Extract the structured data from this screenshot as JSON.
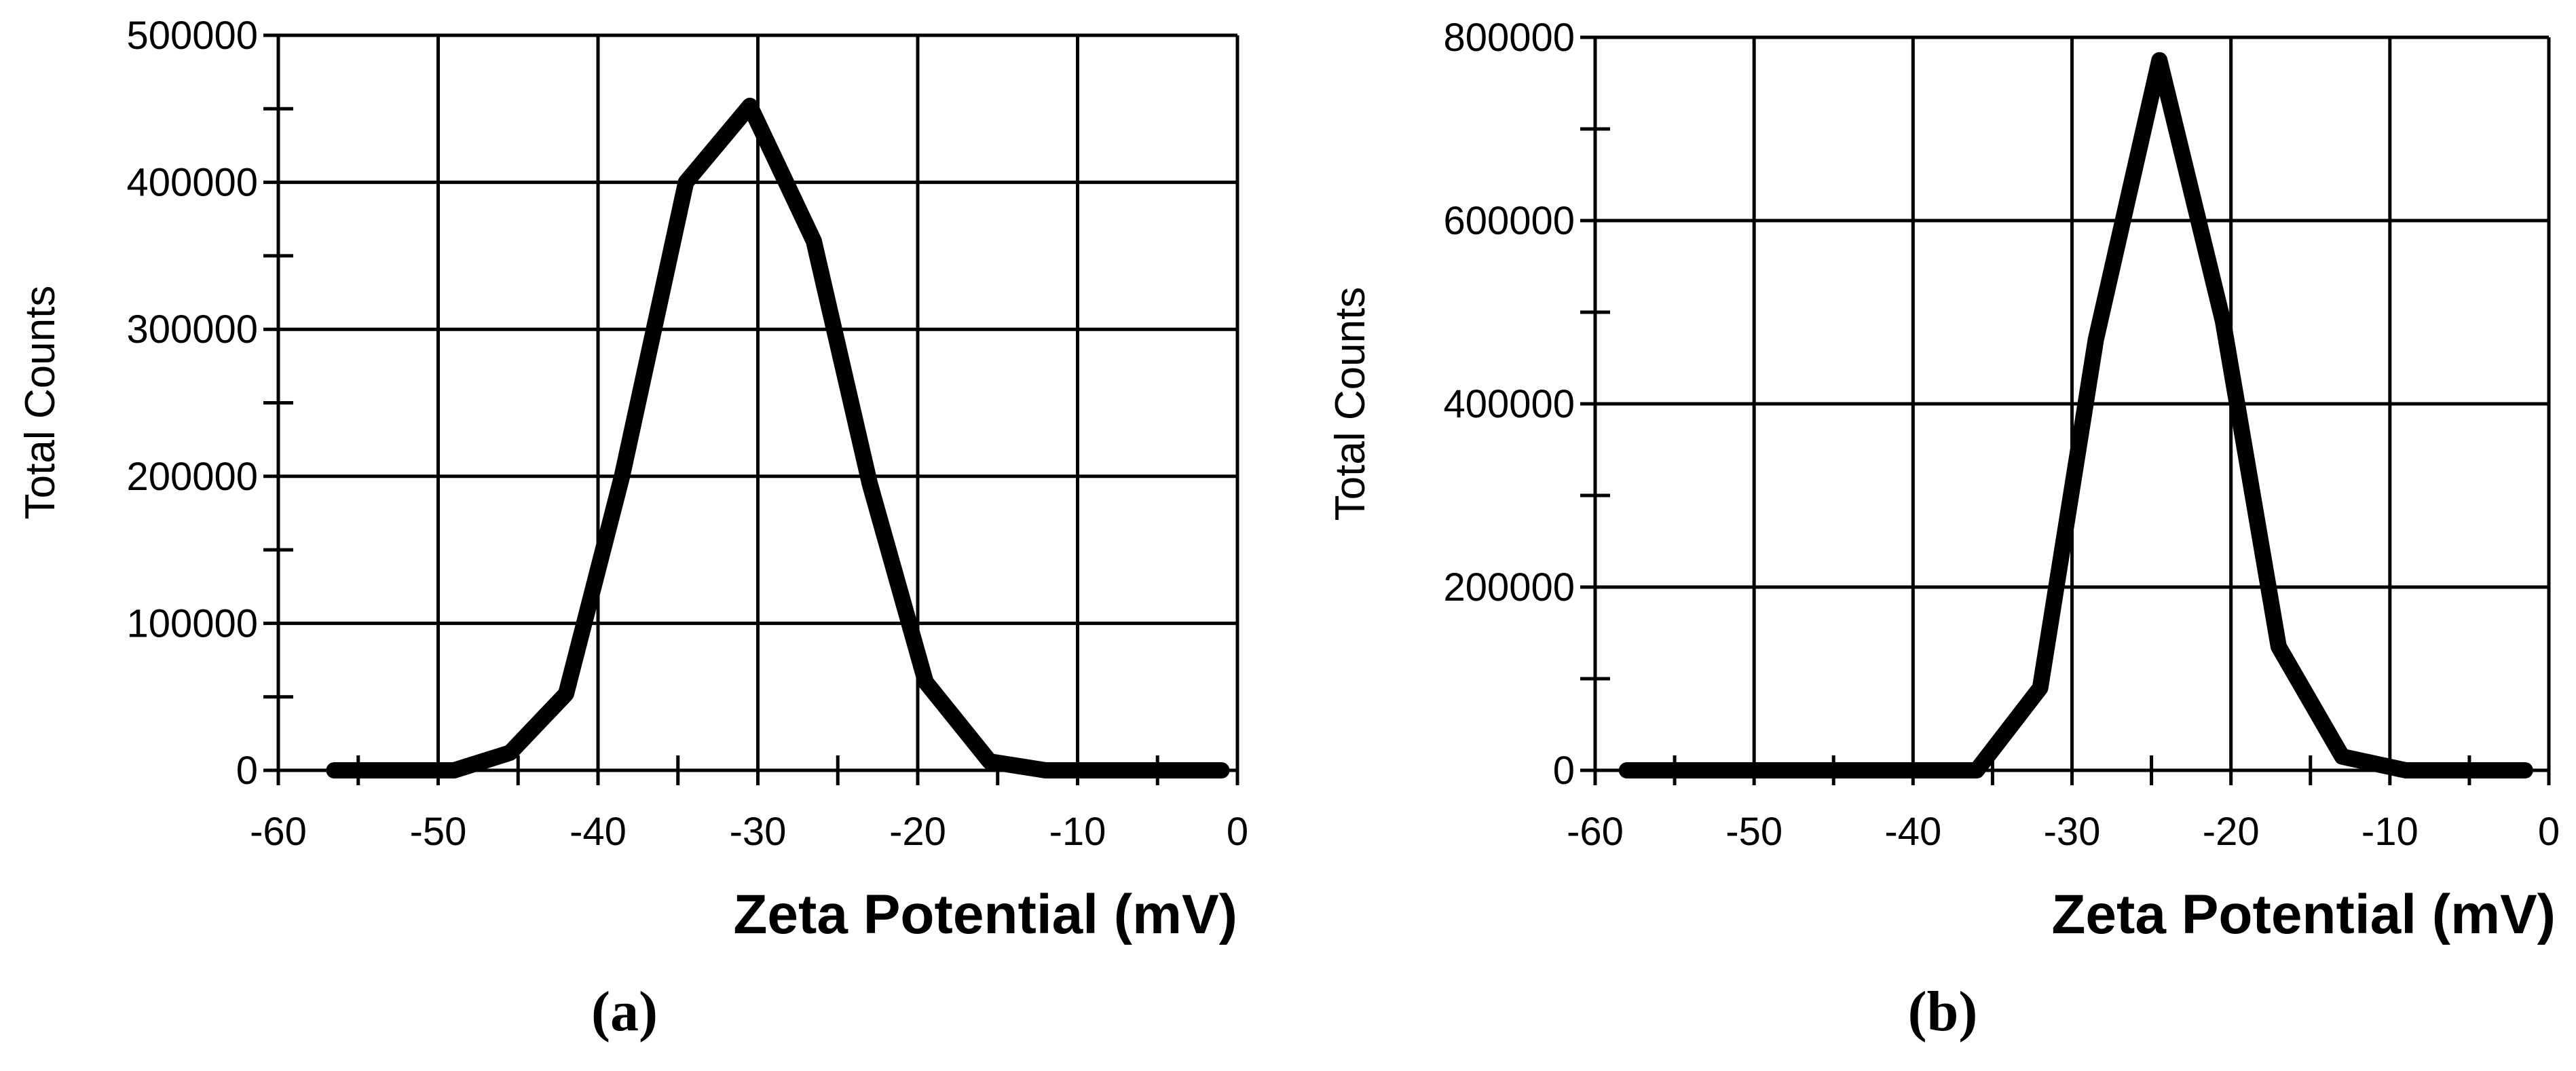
{
  "chart_data": [
    {
      "type": "line",
      "panel_label": "(a)",
      "xlabel": "Zeta Potential (mV)",
      "ylabel": "Total Counts",
      "xlim": [
        -60,
        0
      ],
      "ylim": [
        0,
        500000
      ],
      "xticks": [
        -60,
        -50,
        -40,
        -30,
        -20,
        -10,
        0
      ],
      "yticks": [
        0,
        100000,
        200000,
        300000,
        400000,
        500000
      ],
      "grid": true,
      "series": [
        {
          "x": [
            -56.5,
            -53,
            -49,
            -45.5,
            -42,
            -38.5,
            -34.5,
            -30.5,
            -26.5,
            -23,
            -19.5,
            -15.5,
            -12,
            -8.5,
            -5,
            -1
          ],
          "y": [
            0,
            0,
            0,
            12000,
            52000,
            200000,
            400000,
            452000,
            360000,
            195000,
            60000,
            6000,
            0,
            0,
            0,
            0
          ]
        }
      ]
    },
    {
      "type": "line",
      "panel_label": "(b)",
      "xlabel": "Zeta Potential (mV)",
      "ylabel": "Total Counts",
      "xlim": [
        -60,
        0
      ],
      "ylim": [
        0,
        800000
      ],
      "xticks": [
        -60,
        -50,
        -40,
        -30,
        -20,
        -10,
        0
      ],
      "yticks": [
        0,
        200000,
        400000,
        600000,
        800000
      ],
      "grid": true,
      "series": [
        {
          "x": [
            -58,
            -55,
            -52,
            -49,
            -46,
            -43,
            -40,
            -36,
            -32,
            -28.5,
            -24.5,
            -20.5,
            -17,
            -13,
            -9,
            -5,
            -1.5
          ],
          "y": [
            0,
            0,
            0,
            0,
            0,
            0,
            0,
            0,
            90000,
            470000,
            775000,
            490000,
            135000,
            15000,
            0,
            0,
            0
          ]
        }
      ]
    }
  ]
}
